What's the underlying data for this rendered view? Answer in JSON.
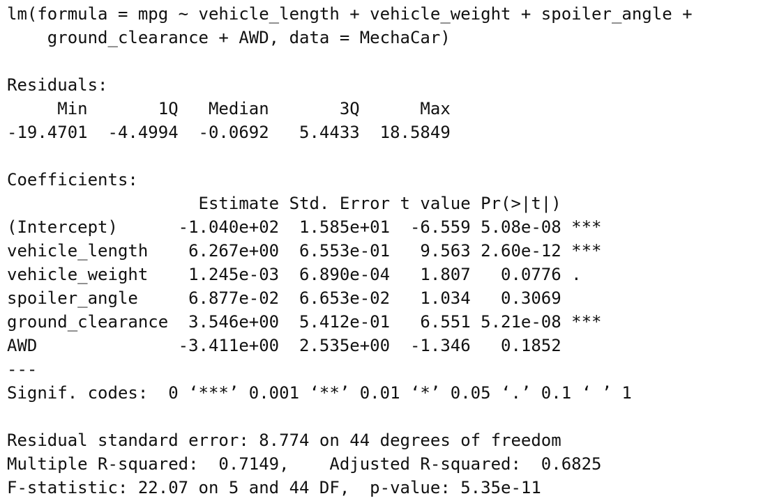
{
  "call": {
    "line1": "lm(formula = mpg ~ vehicle_length + vehicle_weight + spoiler_angle +",
    "line2": "    ground_clearance + AWD, data = MechaCar)"
  },
  "residuals": {
    "title": "Residuals:",
    "header_line": "     Min       1Q   Median       3Q      Max ",
    "values_line": "-19.4701  -4.4994  -0.0692   5.4433  18.5849 "
  },
  "coefficients": {
    "title": "Coefficients:",
    "header_line": "                   Estimate Std. Error t value Pr(>|t|)    ",
    "rows": [
      {
        "line": "(Intercept)      -1.040e+02  1.585e+01  -6.559 5.08e-08 ***"
      },
      {
        "line": "vehicle_length    6.267e+00  6.553e-01   9.563 2.60e-12 ***"
      },
      {
        "line": "vehicle_weight    1.245e-03  6.890e-04   1.807   0.0776 .  "
      },
      {
        "line": "spoiler_angle     6.877e-02  6.653e-02   1.034   0.3069    "
      },
      {
        "line": "ground_clearance  3.546e+00  5.412e-01   6.551 5.21e-08 ***"
      },
      {
        "line": "AWD              -3.411e+00  2.535e+00  -1.346   0.1852    "
      }
    ],
    "separator": "---",
    "signif_codes": "Signif. codes:  0 ‘***’ 0.001 ‘**’ 0.01 ‘*’ 0.05 ‘.’ 0.1 ‘ ’ 1"
  },
  "summary": {
    "residual_se": "Residual standard error: 8.774 on 44 degrees of freedom",
    "r_squared": "Multiple R-squared:  0.7149,\tAdjusted R-squared:  0.6825 ",
    "f_statistic": "F-statistic: 22.07 on 5 and 44 DF,  p-value: 5.35e-11"
  }
}
